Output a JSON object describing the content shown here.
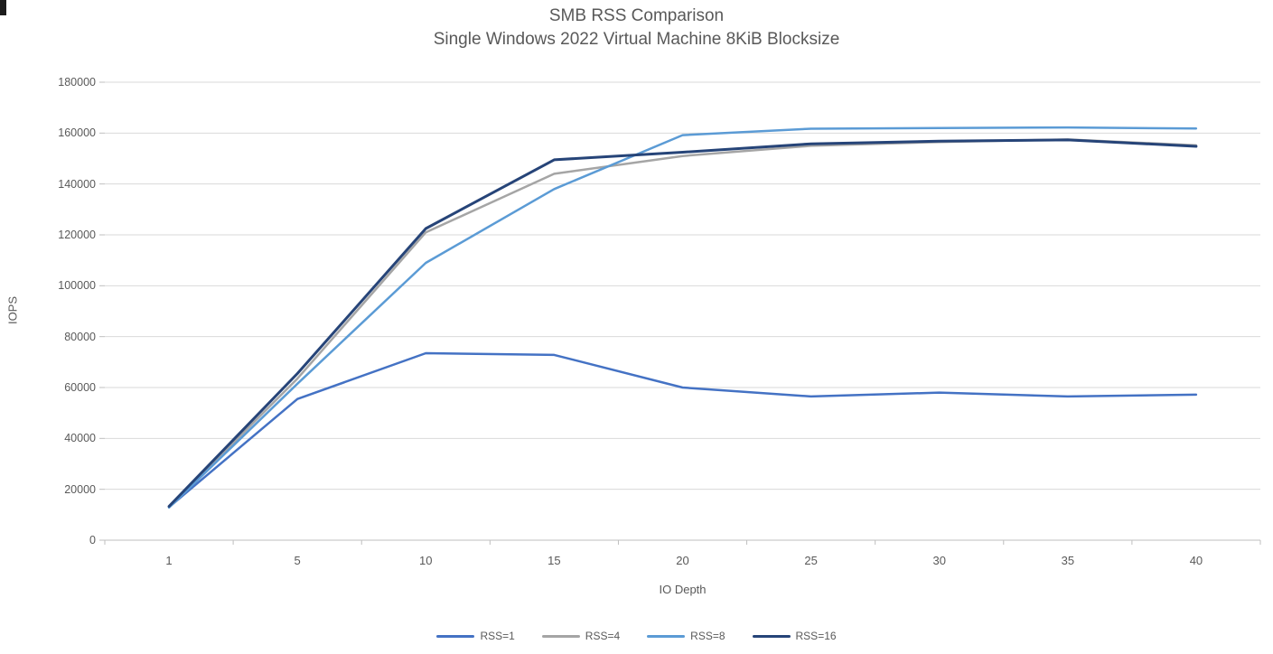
{
  "page": {
    "background": "#FFFFFF"
  },
  "chart_data": {
    "type": "line",
    "title": "SMB RSS Comparison",
    "subtitle": "Single Windows 2022 Virtual Machine 8KiB Blocksize",
    "xlabel": "IO Depth",
    "ylabel": "IOPS",
    "categories": [
      "1",
      "5",
      "10",
      "15",
      "20",
      "25",
      "30",
      "35",
      "40"
    ],
    "series": [
      {
        "name": "RSS=1",
        "color": "#4472C4",
        "stroke_width": 2.5,
        "values": [
          13000,
          55500,
          73500,
          72800,
          60000,
          56500,
          58000,
          56500,
          57200
        ]
      },
      {
        "name": "RSS=4",
        "color": "#A5A5A5",
        "stroke_width": 2.5,
        "values": [
          13000,
          63500,
          121000,
          144000,
          151000,
          155000,
          156500,
          157500,
          155200
        ]
      },
      {
        "name": "RSS=8",
        "color": "#5B9BD5",
        "stroke_width": 2.5,
        "values": [
          12800,
          61500,
          109000,
          138000,
          159200,
          161700,
          162000,
          162200,
          161800
        ]
      },
      {
        "name": "RSS=16",
        "color": "#264478",
        "stroke_width": 3,
        "values": [
          13300,
          65500,
          122500,
          149500,
          152500,
          155800,
          156800,
          157300,
          154800
        ]
      }
    ],
    "ylim": [
      0,
      180000
    ],
    "ytick_step": 20000,
    "ytick_labels": [
      "0",
      "20000",
      "40000",
      "60000",
      "80000",
      "100000",
      "120000",
      "140000",
      "160000",
      "180000"
    ],
    "grid": true,
    "legend_position": "bottom",
    "colors": {
      "grid": "#D9D9D9",
      "axis": "#BFBFBF",
      "text": "#595959"
    }
  }
}
